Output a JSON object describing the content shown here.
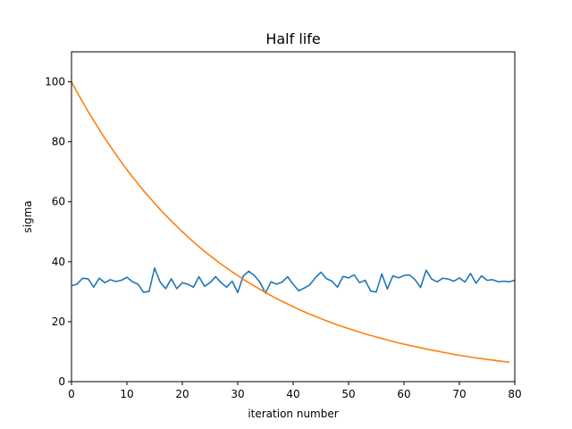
{
  "chart_data": {
    "type": "line",
    "title": "Half life",
    "xlabel": "iteration number",
    "ylabel": "sigma",
    "xlim": [
      0,
      80
    ],
    "ylim": [
      0,
      110
    ],
    "xticks": [
      0,
      10,
      20,
      30,
      40,
      50,
      60,
      70,
      80
    ],
    "yticks": [
      0,
      20,
      40,
      60,
      80,
      100
    ],
    "grid": false,
    "colors": [
      "#1f77b4",
      "#ff7f0e"
    ],
    "series": [
      {
        "x": [
          0,
          1,
          2,
          3,
          4,
          5,
          6,
          7,
          8,
          9,
          10,
          11,
          12,
          13,
          14,
          15,
          16,
          17,
          18,
          19,
          20,
          21,
          22,
          23,
          24,
          25,
          26,
          27,
          28,
          29,
          30,
          31,
          32,
          33,
          34,
          35,
          36,
          37,
          38,
          39,
          40,
          41,
          42,
          43,
          44,
          45,
          46,
          47,
          48,
          49,
          50,
          51,
          52,
          53,
          54,
          55,
          56,
          57,
          58,
          59,
          60,
          61,
          62,
          63,
          64,
          65,
          66,
          67,
          68,
          69,
          70,
          71,
          72,
          73,
          74,
          75,
          76,
          77,
          78,
          79,
          80
        ],
        "values": [
          32,
          32.5,
          34.5,
          34.3,
          31.5,
          34.5,
          33,
          34,
          33.4,
          33.8,
          34.8,
          33.3,
          32.5,
          29.8,
          30.1,
          37.9,
          33.2,
          31,
          34.3,
          31,
          33,
          32.5,
          31.5,
          35,
          31.8,
          33,
          35,
          33,
          31.5,
          33.5,
          29.7,
          35.3,
          36.8,
          35.4,
          33.2,
          29.5,
          33.3,
          32.5,
          33.2,
          35,
          32.5,
          30.3,
          31.2,
          32.3,
          34.6,
          36.5,
          34.4,
          33.5,
          31.5,
          35.1,
          34.6,
          35.6,
          33,
          33.8,
          30.2,
          29.9,
          35.9,
          30.9,
          35.3,
          34.6,
          35.4,
          35.6,
          34,
          31.4,
          37.2,
          34.2,
          33.3,
          34.5,
          34.2,
          33.5,
          34.6,
          33.2,
          36.1,
          32.8,
          35.3,
          33.8,
          34,
          33.3,
          33.5,
          33.3,
          33.8
        ]
      },
      {
        "x": [
          0,
          1,
          2,
          3,
          4,
          5,
          6,
          7,
          8,
          9,
          10,
          11,
          12,
          13,
          14,
          15,
          16,
          17,
          18,
          19,
          20,
          21,
          22,
          23,
          24,
          25,
          26,
          27,
          28,
          29,
          30,
          31,
          32,
          33,
          34,
          35,
          36,
          37,
          38,
          39,
          40,
          41,
          42,
          43,
          44,
          45,
          46,
          47,
          48,
          49,
          50,
          51,
          52,
          53,
          54,
          55,
          56,
          57,
          58,
          59,
          60,
          61,
          62,
          63,
          64,
          65,
          66,
          67,
          68,
          69,
          70,
          71,
          72,
          73,
          74,
          75,
          76,
          77,
          78,
          79
        ],
        "values": [
          100,
          96.6,
          93.3,
          90.1,
          87.1,
          84.1,
          81.2,
          78.5,
          75.8,
          73.2,
          70.7,
          68.3,
          66,
          63.7,
          61.6,
          59.5,
          57.4,
          55.5,
          53.6,
          51.8,
          50,
          48.3,
          46.6,
          45,
          43.5,
          42,
          40.6,
          39.2,
          37.9,
          36.6,
          35.4,
          34.1,
          33,
          31.9,
          30.8,
          29.7,
          28.7,
          27.7,
          26.8,
          25.9,
          25,
          24.1,
          23.3,
          22.5,
          21.8,
          21,
          20.3,
          19.6,
          18.9,
          18.3,
          17.7,
          17.1,
          16.5,
          15.9,
          15.4,
          14.9,
          14.4,
          13.9,
          13.4,
          12.9,
          12.5,
          12.1,
          11.7,
          11.3,
          10.9,
          10.5,
          10.2,
          9.8,
          9.5,
          9.1,
          8.8,
          8.5,
          8.2,
          7.9,
          7.7,
          7.4,
          7.2,
          6.9,
          6.7,
          6.5
        ]
      }
    ]
  }
}
